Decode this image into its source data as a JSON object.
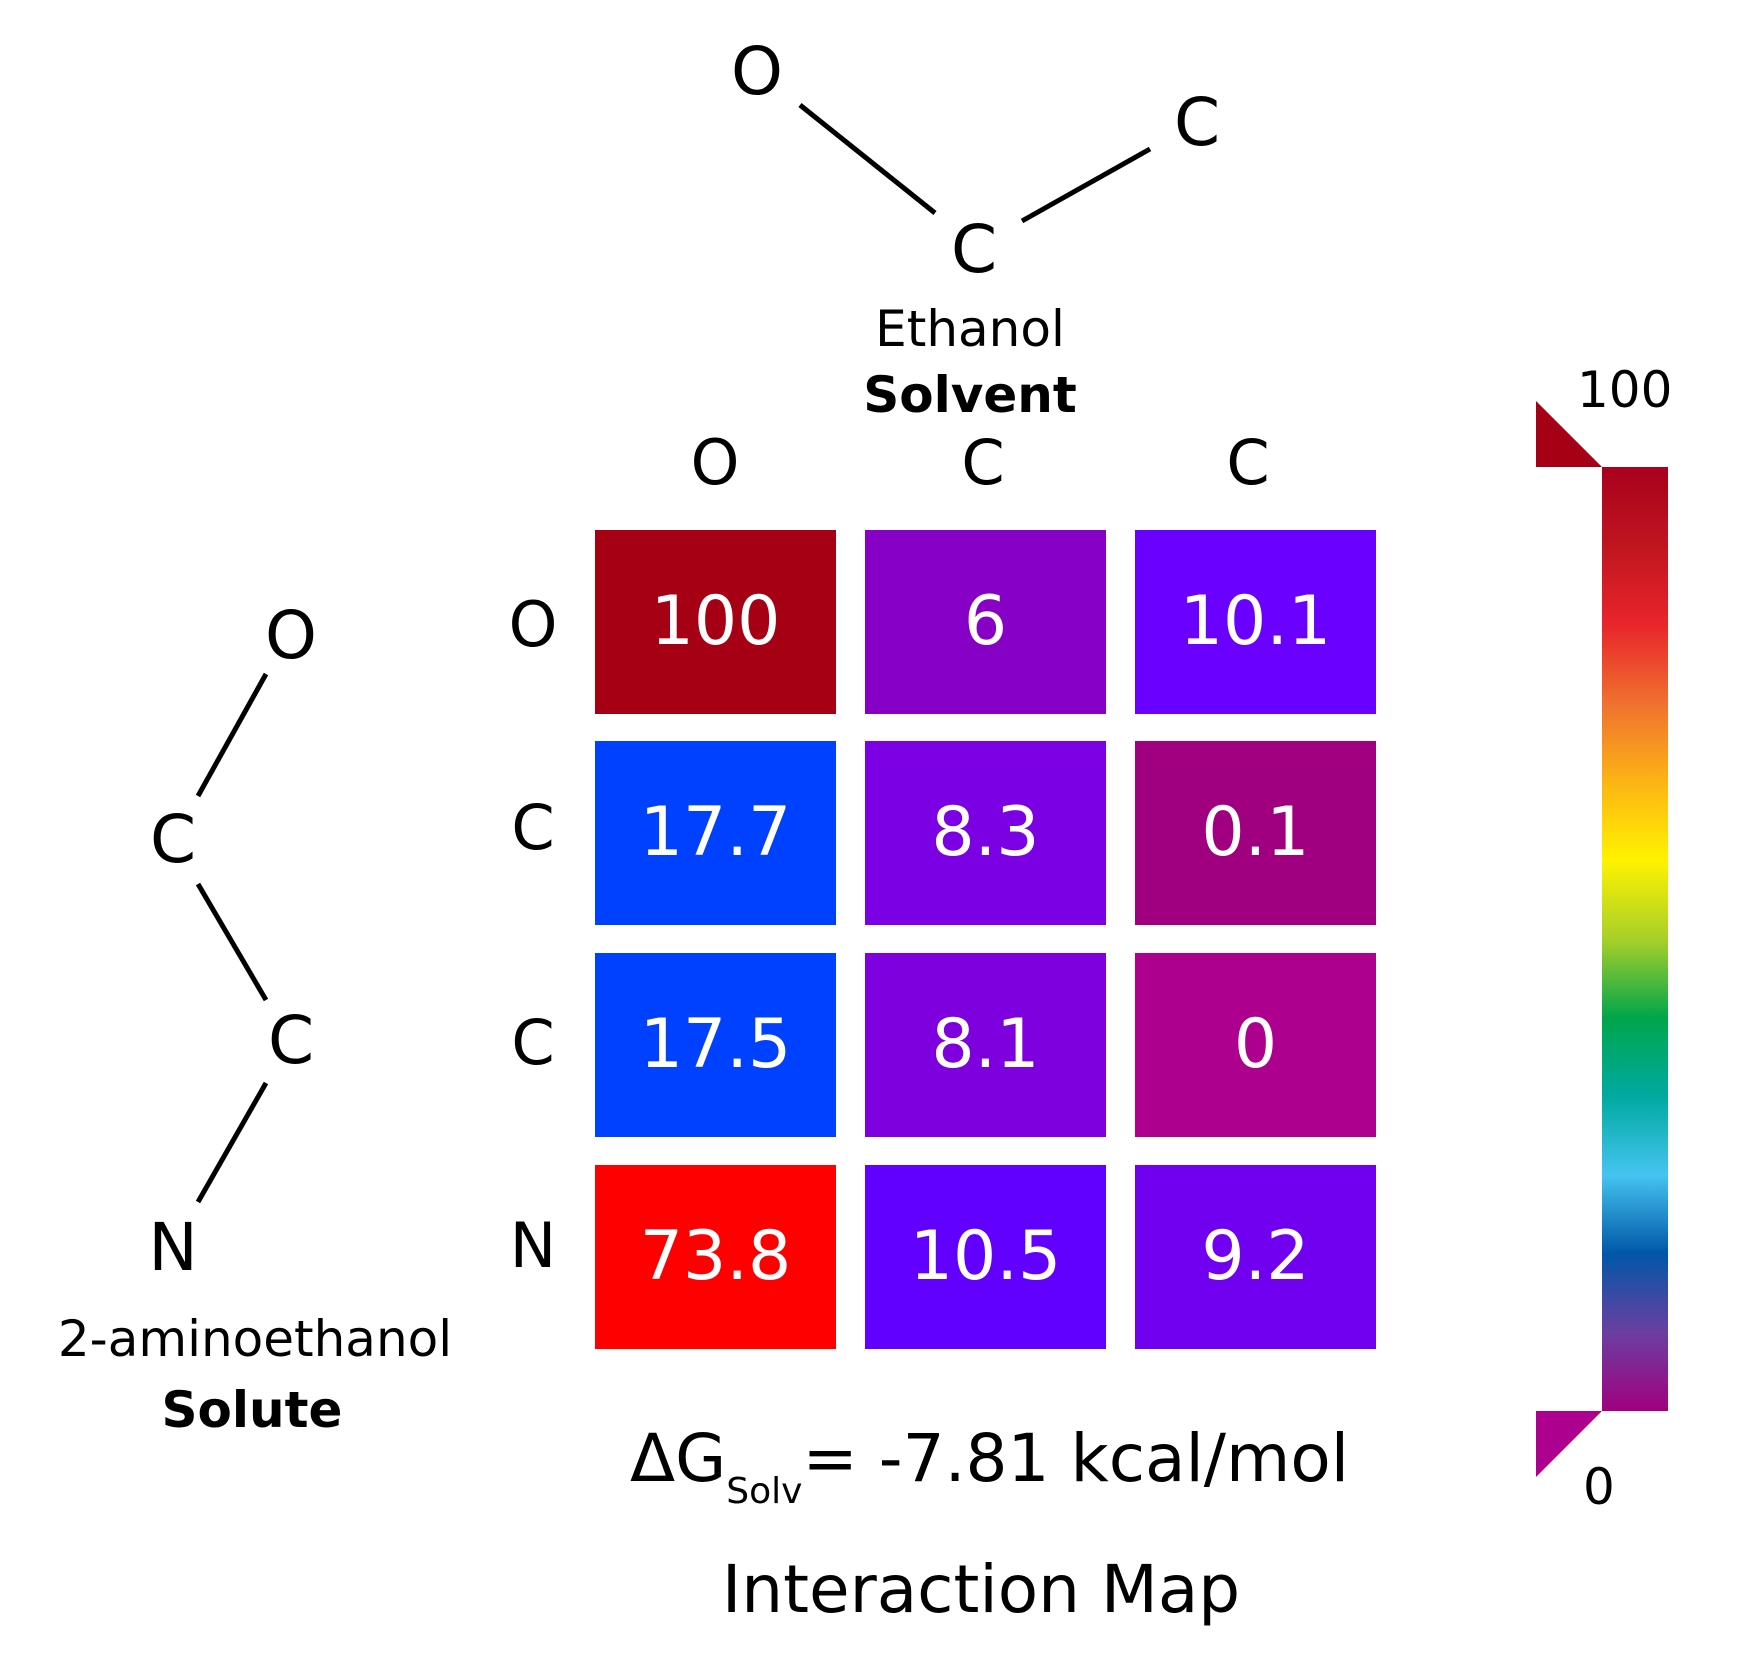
{
  "solvent": {
    "atoms": [
      "O",
      "C",
      "C"
    ],
    "name": "Ethanol",
    "role": "Solvent"
  },
  "solute": {
    "atoms": [
      "O",
      "C",
      "C",
      "N"
    ],
    "name": "2-aminoethanol",
    "role": "Solute"
  },
  "chart_data": {
    "type": "heatmap",
    "title": "Interaction Map",
    "x_labels": [
      "O",
      "C",
      "C"
    ],
    "y_labels": [
      "O",
      "C",
      "C",
      "N"
    ],
    "values": [
      [
        100,
        6,
        10.1
      ],
      [
        17.7,
        8.3,
        0.1
      ],
      [
        17.5,
        8.1,
        0
      ],
      [
        73.8,
        10.5,
        9.2
      ]
    ],
    "value_labels": [
      [
        "100",
        "6",
        "10.1"
      ],
      [
        "17.7",
        "8.3",
        "0.1"
      ],
      [
        "17.5",
        "8.1",
        "0"
      ],
      [
        "73.8",
        "10.5",
        "9.2"
      ]
    ],
    "cell_colors": [
      [
        "#a50014",
        "#8700c6",
        "#6a00ff"
      ],
      [
        "#0040ff",
        "#7c00e4",
        "#a0007f"
      ],
      [
        "#0040ff",
        "#7e00de",
        "#ad008f"
      ],
      [
        "#ff0000",
        "#6200ff",
        "#7100f0"
      ]
    ],
    "colorbar": {
      "min": 0,
      "max": 100,
      "min_label": "0",
      "max_label": "100",
      "colors": [
        "#a0007f",
        "#6a3fa0",
        "#0057a8",
        "#45c4f0",
        "#00aaa0",
        "#00a64a",
        "#a8d028",
        "#fff200",
        "#fcb414",
        "#f07030",
        "#e8252a",
        "#c0151f",
        "#a8001e"
      ],
      "extend_top_color": "#a50014",
      "extend_bottom_color": "#ad008f"
    },
    "annotation": {
      "symbol": "ΔG",
      "subscript": "Solv",
      "text": "= -7.81 kcal/mol"
    }
  }
}
